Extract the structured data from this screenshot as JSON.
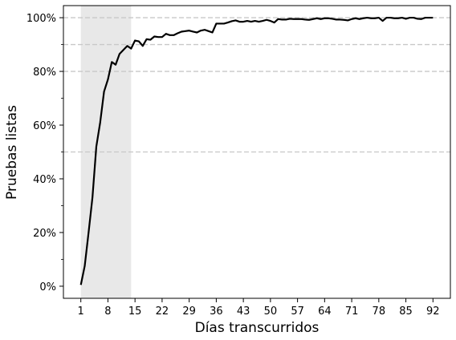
{
  "chart_data": {
    "type": "line",
    "xlabel": "Días transcurridos",
    "ylabel": "Pruebas listas",
    "xlim": [
      -3.5,
      96.5
    ],
    "ylim": [
      -0.045,
      1.045
    ],
    "x_ticks": [
      1,
      8,
      15,
      22,
      29,
      36,
      43,
      50,
      57,
      64,
      71,
      78,
      85,
      92
    ],
    "y_ticks": [
      0,
      0.2,
      0.4,
      0.6,
      0.8,
      1.0
    ],
    "y_tick_labels": [
      "0%",
      "20%",
      "40%",
      "60%",
      "80%",
      "100%"
    ],
    "y_minor_ticks": [
      0.1,
      0.3,
      0.5,
      0.7,
      0.9
    ],
    "shaded_region": {
      "x": [
        1,
        14
      ],
      "color": "#e8e8e8"
    },
    "reference_lines": [
      0.5,
      0.8,
      0.9,
      1.0
    ],
    "line_color": "#000000",
    "reference_line_color": "#c8c8c8",
    "series": [
      {
        "x": [
          1,
          2,
          3,
          4,
          5,
          6,
          7,
          8,
          9,
          10,
          11,
          12,
          13,
          14,
          15,
          16,
          17,
          18,
          19,
          20,
          21,
          22,
          23,
          24,
          25,
          26,
          27,
          28,
          29,
          30,
          31,
          32,
          33,
          34,
          35,
          36,
          37,
          38,
          39,
          40,
          41,
          42,
          43,
          44,
          45,
          46,
          47,
          48,
          49,
          50,
          51,
          52,
          53,
          54,
          55,
          56,
          57,
          58,
          59,
          60,
          61,
          62,
          63,
          64,
          65,
          66,
          67,
          68,
          69,
          70,
          71,
          72,
          73,
          74,
          75,
          76,
          77,
          78,
          79,
          80,
          81,
          82,
          83,
          84,
          85,
          86,
          87,
          88,
          89,
          90,
          91,
          92
        ],
        "y": [
          0.005,
          0.075,
          0.2,
          0.33,
          0.52,
          0.61,
          0.725,
          0.77,
          0.835,
          0.825,
          0.865,
          0.88,
          0.895,
          0.885,
          0.915,
          0.912,
          0.895,
          0.92,
          0.918,
          0.93,
          0.928,
          0.928,
          0.94,
          0.935,
          0.935,
          0.942,
          0.948,
          0.95,
          0.952,
          0.948,
          0.945,
          0.952,
          0.955,
          0.95,
          0.945,
          0.978,
          0.978,
          0.978,
          0.982,
          0.987,
          0.99,
          0.985,
          0.985,
          0.988,
          0.985,
          0.988,
          0.985,
          0.988,
          0.992,
          0.988,
          0.982,
          0.995,
          0.993,
          0.993,
          0.996,
          0.995,
          0.995,
          0.995,
          0.993,
          0.992,
          0.995,
          0.998,
          0.995,
          0.998,
          0.998,
          0.996,
          0.993,
          0.993,
          0.992,
          0.99,
          0.995,
          0.998,
          0.995,
          0.998,
          1.0,
          0.998,
          0.998,
          1.0,
          0.988,
          1.0,
          1.0,
          0.998,
          0.998,
          1.0,
          0.996,
          1.0,
          1.0,
          0.996,
          0.995,
          1.0,
          1.0,
          1.0
        ]
      }
    ]
  }
}
